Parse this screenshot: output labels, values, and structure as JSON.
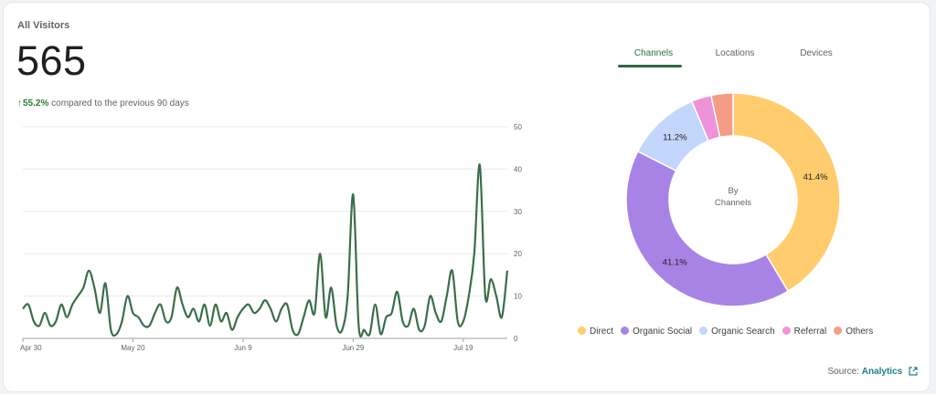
{
  "card": {
    "title": "All Visitors",
    "total": "565",
    "change_pct": "55.2%",
    "change_text": "compared to the previous 90 days"
  },
  "tabs": [
    {
      "label": "Channels",
      "active": true
    },
    {
      "label": "Locations",
      "active": false
    },
    {
      "label": "Devices",
      "active": false
    }
  ],
  "source": {
    "prefix": "Source:",
    "link": "Analytics"
  },
  "colors": {
    "line": "#3a6e49",
    "grid": "#e8eaed",
    "accent": "#2e6b41"
  },
  "chart_data": [
    {
      "type": "line",
      "title": "",
      "xlabel": "",
      "ylabel": "",
      "x_tick_labels": [
        "Apr 30",
        "May 20",
        "Jun 9",
        "Jun 29",
        "Jul 19"
      ],
      "y_ticks": [
        0,
        10,
        20,
        30,
        40,
        50
      ],
      "ylim": [
        0,
        50
      ],
      "grid": true,
      "y_axis_side": "right",
      "series": [
        {
          "x": [
            "Apr 30",
            "May 1",
            "May 2",
            "May 3",
            "May 4",
            "May 5",
            "May 6",
            "May 7",
            "May 8",
            "May 9",
            "May 10",
            "May 11",
            "May 12",
            "May 13",
            "May 14",
            "May 15",
            "May 16",
            "May 17",
            "May 18",
            "May 19",
            "May 20",
            "May 21",
            "May 22",
            "May 23",
            "May 24",
            "May 25",
            "May 26",
            "May 27",
            "May 28",
            "May 29",
            "May 30",
            "May 31",
            "Jun 1",
            "Jun 2",
            "Jun 3",
            "Jun 4",
            "Jun 5",
            "Jun 6",
            "Jun 7",
            "Jun 8",
            "Jun 9",
            "Jun 10",
            "Jun 11",
            "Jun 12",
            "Jun 13",
            "Jun 14",
            "Jun 15",
            "Jun 16",
            "Jun 17",
            "Jun 18",
            "Jun 19",
            "Jun 20",
            "Jun 21",
            "Jun 22",
            "Jun 23",
            "Jun 24",
            "Jun 25",
            "Jun 26",
            "Jun 27",
            "Jun 28",
            "Jun 29",
            "Jun 30",
            "Jul 1",
            "Jul 2",
            "Jul 3",
            "Jul 4",
            "Jul 5",
            "Jul 6",
            "Jul 7",
            "Jul 8",
            "Jul 9",
            "Jul 10",
            "Jul 11",
            "Jul 12",
            "Jul 13",
            "Jul 14",
            "Jul 15",
            "Jul 16",
            "Jul 17",
            "Jul 18",
            "Jul 19",
            "Jul 20",
            "Jul 21",
            "Jul 22",
            "Jul 23",
            "Jul 24",
            "Jul 25",
            "Jul 26",
            "Jul 27"
          ],
          "values": [
            7,
            8,
            4,
            3,
            6,
            3,
            4,
            8,
            5,
            8,
            10,
            12,
            16,
            12,
            6,
            13,
            2,
            1,
            4,
            10,
            6,
            5,
            3,
            3,
            6,
            8,
            4,
            5,
            12,
            8,
            5,
            7,
            4,
            8,
            3,
            8,
            4,
            6,
            2,
            5,
            7,
            8,
            6,
            7,
            9,
            7,
            4,
            7,
            8,
            2,
            1,
            5,
            9,
            6,
            20,
            5,
            12,
            3,
            2,
            10,
            34,
            3,
            2,
            1,
            8,
            1,
            5,
            6,
            11,
            4,
            3,
            7,
            2,
            3,
            10,
            6,
            4,
            10,
            16,
            4,
            4,
            10,
            20,
            41,
            10,
            14,
            10,
            5,
            16
          ]
        }
      ]
    },
    {
      "type": "pie",
      "title": "",
      "center_label": [
        "By",
        "Channels"
      ],
      "categories": [
        "Direct",
        "Organic Social",
        "Organic Search",
        "Referral",
        "Others"
      ],
      "values": [
        41.4,
        41.1,
        11.2,
        3.0,
        3.3
      ],
      "value_labels": [
        "41.4%",
        "41.1%",
        "11.2%",
        "",
        ""
      ],
      "colors": [
        "#ffcd6e",
        "#a883e6",
        "#c3d6fb",
        "#ee92da",
        "#f59d84"
      ],
      "legend_position": "bottom"
    }
  ]
}
